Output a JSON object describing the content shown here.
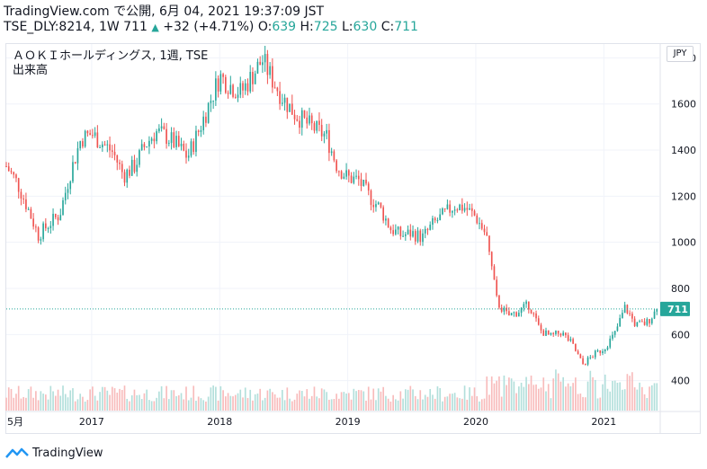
{
  "header": {
    "line1": "TradingView.com で公開, 6月 04, 2021 19:37:09 JST",
    "line2_symbol": "TSE_DLY:8214, 1W",
    "line2_last": "711",
    "line2_change": "+32 (+4.71%)",
    "o_label": "O:",
    "o_value": "639",
    "h_label": "H:",
    "h_value": "725",
    "l_label": "L:",
    "l_value": "630",
    "c_label": "C:",
    "c_value": "711"
  },
  "chart_title": {
    "line1": "ＡＯＫＩホールディングス, 1週, TSE",
    "line2": "出来高"
  },
  "currency_badge": "JPY",
  "footer": {
    "brand": "TradingView"
  },
  "colors": {
    "up": "#26a69a",
    "down": "#ef5350",
    "up_vol": "#b2dfdb",
    "down_vol": "#f8bbbb",
    "grid": "#f0f3fa",
    "last_line": "#26a69a"
  },
  "chart_data": {
    "type": "candlestick",
    "title": "ＡＯＫＩホールディングス, 1週, TSE",
    "ylabel": "JPY",
    "ylim": [
      270,
      1860
    ],
    "y_ticks": [
      400,
      600,
      800,
      1000,
      1200,
      1400,
      1600,
      1800
    ],
    "x_ticks": [
      "5月",
      "2017",
      "2018",
      "2019",
      "2020",
      "2021"
    ],
    "x_range": [
      "2016-05",
      "2021-06"
    ],
    "last_price": 711,
    "last_price_label": "711",
    "price_path": [
      [
        "2016-05",
        1330
      ],
      [
        "2016-06",
        1260
      ],
      [
        "2016-07",
        1150
      ],
      [
        "2016-08",
        1030
      ],
      [
        "2016-09",
        1080
      ],
      [
        "2016-10",
        1120
      ],
      [
        "2016-11",
        1300
      ],
      [
        "2016-12",
        1450
      ],
      [
        "2017-01",
        1470
      ],
      [
        "2017-02",
        1430
      ],
      [
        "2017-03",
        1390
      ],
      [
        "2017-04",
        1290
      ],
      [
        "2017-05",
        1330
      ],
      [
        "2017-06",
        1420
      ],
      [
        "2017-07",
        1480
      ],
      [
        "2017-08",
        1460
      ],
      [
        "2017-09",
        1420
      ],
      [
        "2017-10",
        1370
      ],
      [
        "2017-11",
        1480
      ],
      [
        "2017-12",
        1600
      ],
      [
        "2018-01",
        1720
      ],
      [
        "2018-02",
        1680
      ],
      [
        "2018-03",
        1650
      ],
      [
        "2018-04",
        1720
      ],
      [
        "2018-05",
        1790
      ],
      [
        "2018-06",
        1700
      ],
      [
        "2018-07",
        1620
      ],
      [
        "2018-08",
        1560
      ],
      [
        "2018-09",
        1520
      ],
      [
        "2018-10",
        1490
      ],
      [
        "2018-11",
        1460
      ],
      [
        "2018-12",
        1330
      ],
      [
        "2019-01",
        1280
      ],
      [
        "2019-02",
        1270
      ],
      [
        "2019-03",
        1200
      ],
      [
        "2019-04",
        1150
      ],
      [
        "2019-05",
        1060
      ],
      [
        "2019-06",
        1030
      ],
      [
        "2019-07",
        1040
      ],
      [
        "2019-08",
        1020
      ],
      [
        "2019-09",
        1080
      ],
      [
        "2019-10",
        1120
      ],
      [
        "2019-11",
        1160
      ],
      [
        "2019-12",
        1150
      ],
      [
        "2020-01",
        1110
      ],
      [
        "2020-02",
        1030
      ],
      [
        "2020-03",
        740
      ],
      [
        "2020-04",
        680
      ],
      [
        "2020-05",
        700
      ],
      [
        "2020-06",
        730
      ],
      [
        "2020-07",
        620
      ],
      [
        "2020-08",
        590
      ],
      [
        "2020-09",
        610
      ],
      [
        "2020-10",
        560
      ],
      [
        "2020-11",
        470
      ],
      [
        "2020-12",
        510
      ],
      [
        "2021-01",
        540
      ],
      [
        "2021-02",
        600
      ],
      [
        "2021-03",
        720
      ],
      [
        "2021-04",
        640
      ],
      [
        "2021-05",
        650
      ],
      [
        "2021-06",
        711
      ]
    ],
    "grid": true,
    "volume_pane": true
  }
}
